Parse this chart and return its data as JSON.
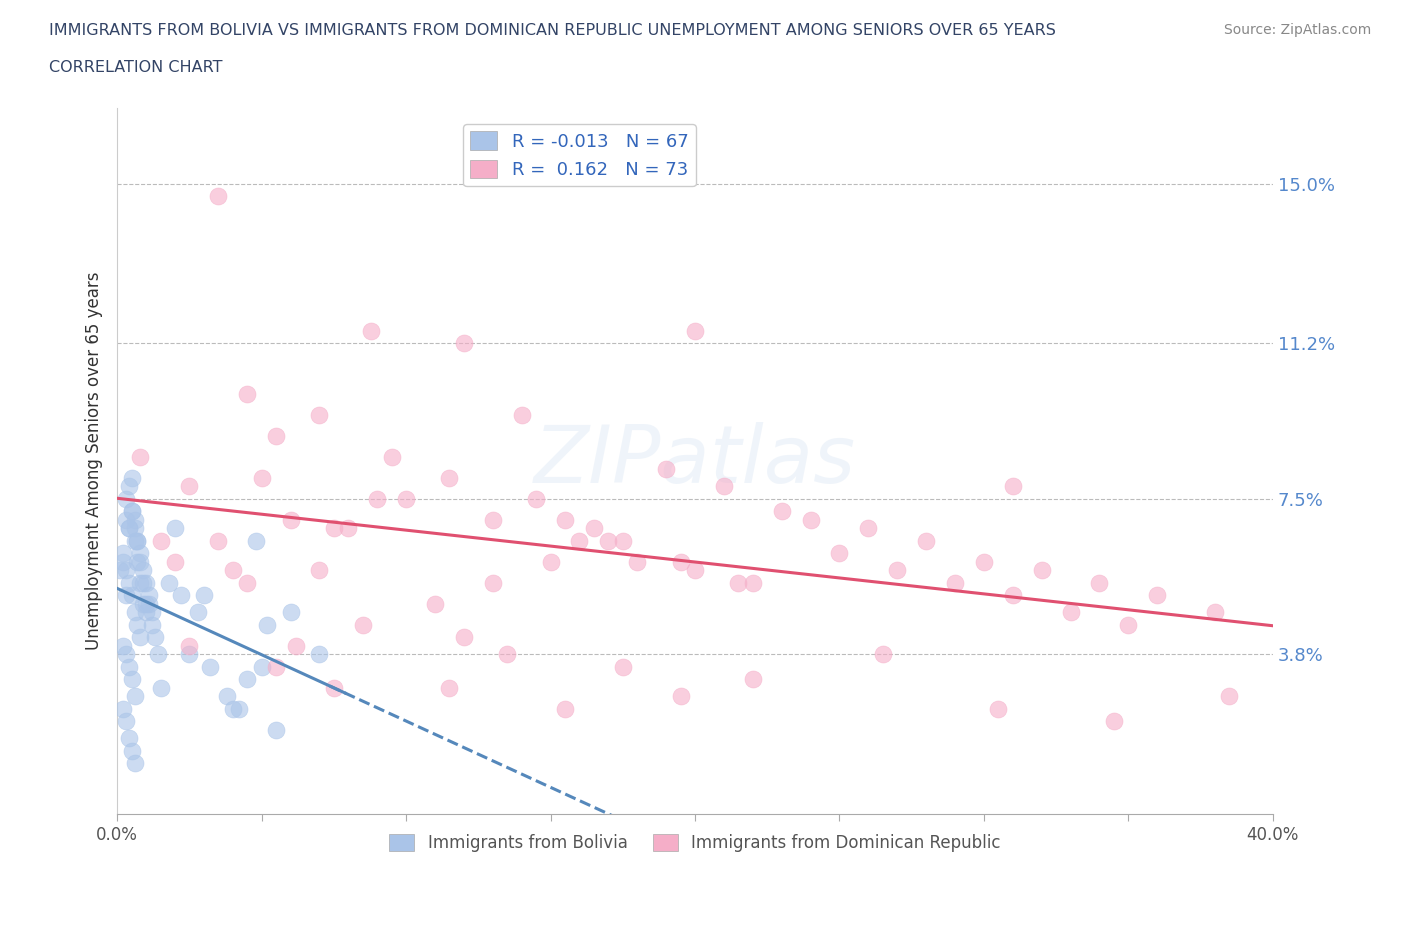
{
  "title_line1": "IMMIGRANTS FROM BOLIVIA VS IMMIGRANTS FROM DOMINICAN REPUBLIC UNEMPLOYMENT AMONG SENIORS OVER 65 YEARS",
  "title_line2": "CORRELATION CHART",
  "source": "Source: ZipAtlas.com",
  "ylabel": "Unemployment Among Seniors over 65 years",
  "xlim": [
    0.0,
    0.4
  ],
  "ylim": [
    0.0,
    0.168
  ],
  "ytick_gridlines": [
    0.038,
    0.075,
    0.112,
    0.15
  ],
  "ytick_labels": [
    "3.8%",
    "7.5%",
    "11.2%",
    "15.0%"
  ],
  "bolivia_color": "#aac4e8",
  "dominican_color": "#f5aec8",
  "bolivia_line_color": "#5588bb",
  "dominican_line_color": "#e05070",
  "bolivia_R": -0.013,
  "bolivia_N": 67,
  "dominican_R": 0.162,
  "dominican_N": 73,
  "watermark": "ZIPatlas",
  "background_color": "#ffffff",
  "bolivia_x": [
    0.001,
    0.002,
    0.003,
    0.004,
    0.005,
    0.006,
    0.007,
    0.008,
    0.009,
    0.01,
    0.011,
    0.012,
    0.013,
    0.014,
    0.015,
    0.003,
    0.004,
    0.005,
    0.006,
    0.007,
    0.008,
    0.009,
    0.01,
    0.011,
    0.012,
    0.003,
    0.004,
    0.005,
    0.006,
    0.007,
    0.008,
    0.009,
    0.01,
    0.002,
    0.003,
    0.004,
    0.005,
    0.006,
    0.007,
    0.008,
    0.002,
    0.003,
    0.004,
    0.005,
    0.006,
    0.002,
    0.003,
    0.004,
    0.005,
    0.006,
    0.018,
    0.022,
    0.028,
    0.032,
    0.038,
    0.042,
    0.05,
    0.055,
    0.06,
    0.07,
    0.02,
    0.025,
    0.03,
    0.04,
    0.045,
    0.048,
    0.052
  ],
  "bolivia_y": [
    0.058,
    0.062,
    0.052,
    0.068,
    0.072,
    0.065,
    0.06,
    0.055,
    0.05,
    0.048,
    0.052,
    0.045,
    0.042,
    0.038,
    0.03,
    0.075,
    0.078,
    0.08,
    0.07,
    0.065,
    0.062,
    0.058,
    0.055,
    0.05,
    0.048,
    0.07,
    0.068,
    0.072,
    0.068,
    0.065,
    0.06,
    0.055,
    0.05,
    0.06,
    0.058,
    0.055,
    0.052,
    0.048,
    0.045,
    0.042,
    0.04,
    0.038,
    0.035,
    0.032,
    0.028,
    0.025,
    0.022,
    0.018,
    0.015,
    0.012,
    0.055,
    0.052,
    0.048,
    0.035,
    0.028,
    0.025,
    0.035,
    0.02,
    0.048,
    0.038,
    0.068,
    0.038,
    0.052,
    0.025,
    0.032,
    0.065,
    0.045
  ],
  "dominican_x": [
    0.035,
    0.008,
    0.025,
    0.055,
    0.07,
    0.088,
    0.1,
    0.115,
    0.06,
    0.045,
    0.08,
    0.035,
    0.02,
    0.07,
    0.12,
    0.14,
    0.05,
    0.09,
    0.13,
    0.16,
    0.18,
    0.2,
    0.22,
    0.095,
    0.155,
    0.175,
    0.195,
    0.215,
    0.145,
    0.165,
    0.25,
    0.27,
    0.29,
    0.31,
    0.33,
    0.35,
    0.28,
    0.24,
    0.26,
    0.3,
    0.32,
    0.34,
    0.36,
    0.38,
    0.23,
    0.21,
    0.19,
    0.17,
    0.15,
    0.13,
    0.11,
    0.075,
    0.04,
    0.015,
    0.025,
    0.055,
    0.085,
    0.115,
    0.135,
    0.155,
    0.175,
    0.195,
    0.12,
    0.075,
    0.22,
    0.265,
    0.305,
    0.345,
    0.385,
    0.062,
    0.045,
    0.2,
    0.31
  ],
  "dominican_y": [
    0.147,
    0.085,
    0.078,
    0.09,
    0.095,
    0.115,
    0.075,
    0.08,
    0.07,
    0.1,
    0.068,
    0.065,
    0.06,
    0.058,
    0.112,
    0.095,
    0.08,
    0.075,
    0.07,
    0.065,
    0.06,
    0.058,
    0.055,
    0.085,
    0.07,
    0.065,
    0.06,
    0.055,
    0.075,
    0.068,
    0.062,
    0.058,
    0.055,
    0.052,
    0.048,
    0.045,
    0.065,
    0.07,
    0.068,
    0.06,
    0.058,
    0.055,
    0.052,
    0.048,
    0.072,
    0.078,
    0.082,
    0.065,
    0.06,
    0.055,
    0.05,
    0.068,
    0.058,
    0.065,
    0.04,
    0.035,
    0.045,
    0.03,
    0.038,
    0.025,
    0.035,
    0.028,
    0.042,
    0.03,
    0.032,
    0.038,
    0.025,
    0.022,
    0.028,
    0.04,
    0.055,
    0.115,
    0.078
  ]
}
